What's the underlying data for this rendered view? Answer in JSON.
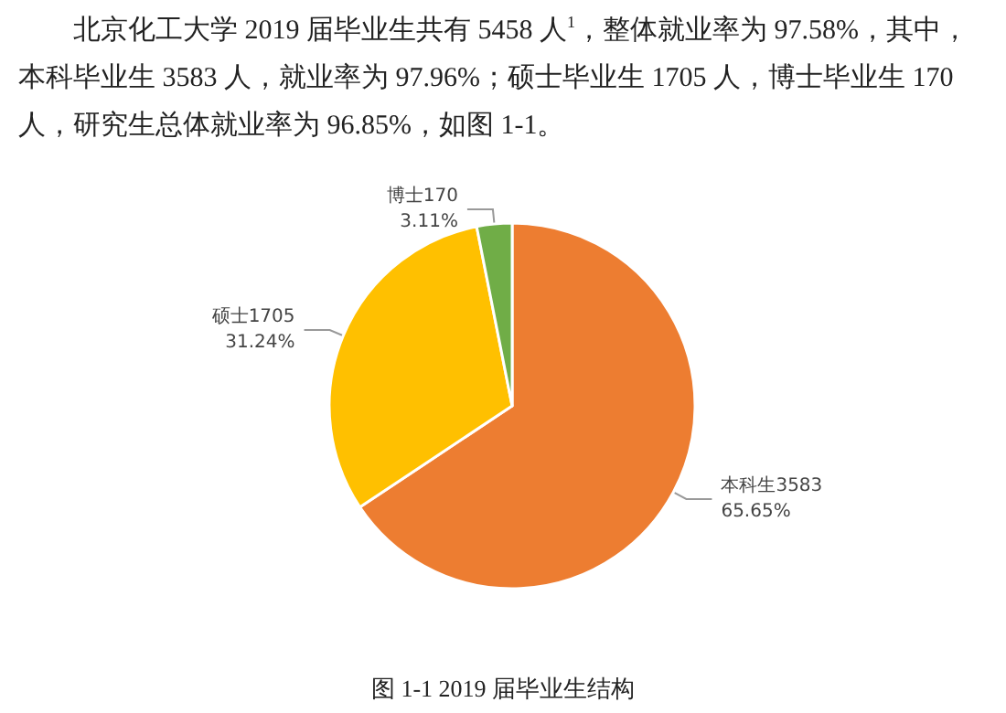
{
  "chart_data": {
    "type": "pie",
    "title": "图 1-1 2019 届毕业生结构",
    "annotations": [
      "北京化工大学 2019 届毕业生共有 5458 人$^{1}$，整体就业率为 97.58%，其中，本科毕业生 3583 人，就业率为 97.96%；硕士毕业生 1705 人，博士毕业生 170 人，研究生总体就业率为 96.85%，如图 1-1。"
    ],
    "categories": [
      "本科生3583",
      "硕士1705",
      "博士170"
    ],
    "values": [
      65.65,
      31.24,
      3.11
    ],
    "value_labels": [
      "65.65%",
      "31.24%",
      "3.11%"
    ],
    "colors": [
      "#ed7d31",
      "#ffc000",
      "#70ad47"
    ],
    "legend": false
  }
}
